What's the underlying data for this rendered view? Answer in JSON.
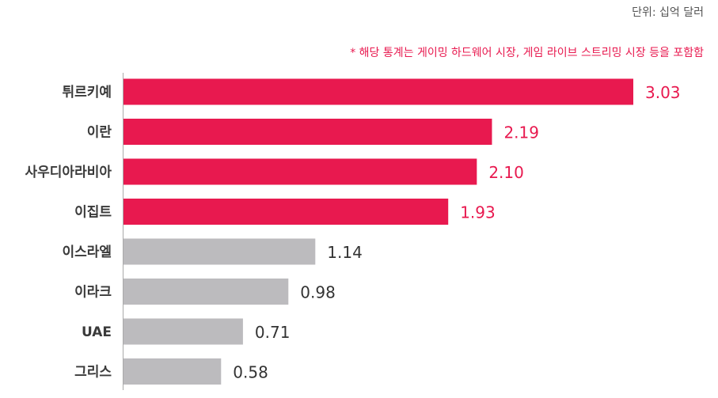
{
  "chart_data": {
    "type": "bar",
    "orientation": "horizontal",
    "unit_label": "단위: 십억 달러",
    "note": "* 해당 통계는 게이밍 하드웨어 시장, 게임 라이브 스트리밍 시장 등을 포함함",
    "categories": [
      "튀르키예",
      "이란",
      "사우디아라비아",
      "이집트",
      "이스라엘",
      "이라크",
      "UAE",
      "그리스"
    ],
    "values": [
      3.03,
      2.19,
      2.1,
      1.93,
      1.14,
      0.98,
      0.71,
      0.58
    ],
    "value_labels": [
      "3.03",
      "2.19",
      "2.10",
      "1.93",
      "1.14",
      "0.98",
      "0.71",
      "0.58"
    ],
    "highlighted": [
      true,
      true,
      true,
      true,
      false,
      false,
      false,
      false
    ],
    "colors": {
      "highlight": "#e8194f",
      "normal": "#bcbbbe",
      "highlight_text": "#e8194f",
      "normal_text": "#333333",
      "category_text": "#3a3a3a",
      "unit_text": "#555555",
      "note_text": "#e8194f",
      "axis": "#aaaaaa"
    },
    "xlim": [
      0,
      3.03
    ],
    "grid": false,
    "legend": "none"
  }
}
